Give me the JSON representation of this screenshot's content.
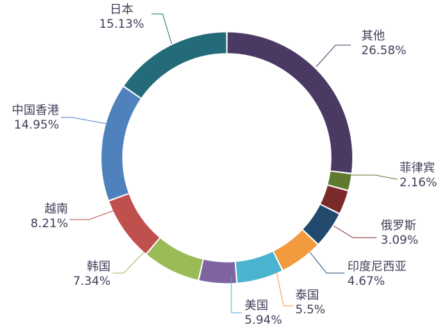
{
  "chart_data": {
    "type": "pie",
    "variant": "donut",
    "legend": "none",
    "slices": [
      {
        "label": "其他",
        "percent_text": "26.58%",
        "value": 26.58,
        "color": "#4a3a63"
      },
      {
        "label": "菲律宾",
        "percent_text": "2.16%",
        "value": 2.16,
        "color": "#5e7a30"
      },
      {
        "label": "俄罗斯",
        "percent_text": "3.09%",
        "value": 3.09,
        "color": "#7b2a2a"
      },
      {
        "label": "印度尼西亚",
        "percent_text": "4.67%",
        "value": 4.67,
        "color": "#22496e"
      },
      {
        "label": "泰国",
        "percent_text": "5.5%",
        "value": 5.5,
        "color": "#f29a3e"
      },
      {
        "label": "美国",
        "percent_text": "5.94%",
        "value": 5.94,
        "color": "#4ab3cf"
      },
      {
        "label": "",
        "percent_text": "",
        "value": 4.83,
        "color": "#8064a2"
      },
      {
        "label": "韩国",
        "percent_text": "7.34%",
        "value": 7.34,
        "color": "#9bbb59"
      },
      {
        "label": "越南",
        "percent_text": "8.21%",
        "value": 8.21,
        "color": "#c0504d"
      },
      {
        "label": "中国香港",
        "percent_text": "14.95%",
        "value": 14.95,
        "color": "#4f81bd"
      },
      {
        "label": "日本",
        "percent_text": "15.13%",
        "value": 15.13,
        "color": "#236b78"
      }
    ]
  }
}
